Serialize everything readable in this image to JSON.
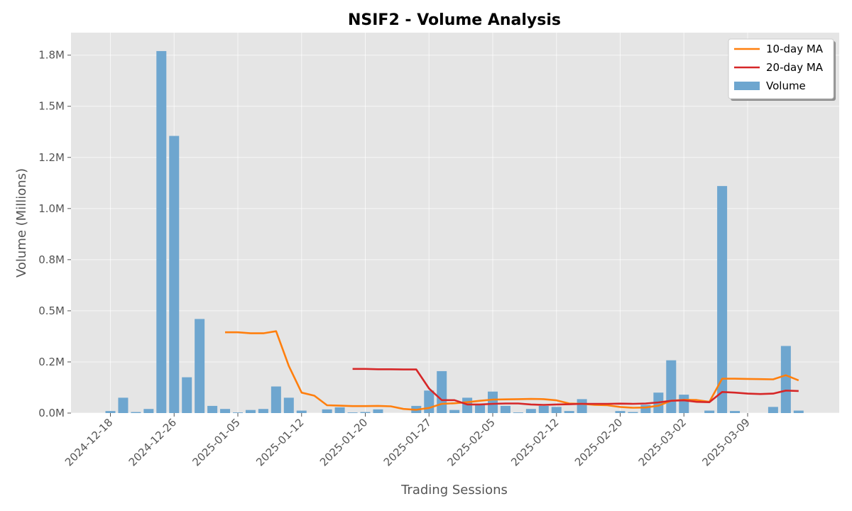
{
  "chart_data": {
    "type": "bar",
    "title": "NSIF2 - Volume Analysis",
    "xlabel": "Trading Sessions",
    "ylabel": "Volume (Millions)",
    "ylim": [
      0,
      1.86
    ],
    "ytick_values": [
      0.0,
      0.25,
      0.5,
      0.75,
      1.0,
      1.25,
      1.5,
      1.75
    ],
    "ytick_labels": [
      "0.0M",
      "0.2M",
      "0.5M",
      "0.8M",
      "1.0M",
      "1.2M",
      "1.5M",
      "1.8M"
    ],
    "xtick_indices": [
      0,
      5,
      10,
      15,
      20,
      25,
      30,
      35,
      40,
      45,
      50
    ],
    "xtick_labels": [
      "2024-12-18",
      "2024-12-26",
      "2025-01-05",
      "2025-01-12",
      "2025-01-20",
      "2025-01-27",
      "2025-02-05",
      "2025-02-12",
      "2025-02-20",
      "2025-03-02",
      "2025-03-09"
    ],
    "grid": true,
    "legend_position": "top-right",
    "series": [
      {
        "name": "Volume",
        "kind": "bar",
        "color": "#6ea6cf",
        "values": [
          0.01,
          0.075,
          0.005,
          0.02,
          1.77,
          1.355,
          0.175,
          0.46,
          0.035,
          0.02,
          0.003,
          0.015,
          0.02,
          0.13,
          0.075,
          0.012,
          0.0,
          0.018,
          0.028,
          0.003,
          0.005,
          0.018,
          0.0,
          0.0,
          0.035,
          0.11,
          0.205,
          0.015,
          0.075,
          0.045,
          0.105,
          0.035,
          0.003,
          0.02,
          0.035,
          0.03,
          0.01,
          0.068,
          0.0,
          0.0,
          0.01,
          0.005,
          0.04,
          0.1,
          0.258,
          0.09,
          0.0,
          0.012,
          1.11,
          0.01,
          0.0,
          0.0,
          0.03,
          0.328,
          0.012
        ]
      },
      {
        "name": "10-day MA",
        "kind": "line",
        "color": "#ff7f0e",
        "values": [
          null,
          null,
          null,
          null,
          null,
          null,
          null,
          null,
          null,
          0.395,
          0.395,
          0.39,
          0.39,
          0.4,
          0.23,
          0.1,
          0.085,
          0.038,
          0.036,
          0.034,
          0.034,
          0.035,
          0.033,
          0.02,
          0.016,
          0.025,
          0.045,
          0.048,
          0.053,
          0.06,
          0.066,
          0.067,
          0.068,
          0.069,
          0.068,
          0.062,
          0.047,
          0.045,
          0.04,
          0.038,
          0.03,
          0.026,
          0.027,
          0.036,
          0.06,
          0.065,
          0.064,
          0.055,
          0.168,
          0.168,
          0.167,
          0.166,
          0.165,
          0.185,
          0.16
        ]
      },
      {
        "name": "20-day MA",
        "kind": "line",
        "color": "#d62728",
        "values": [
          null,
          null,
          null,
          null,
          null,
          null,
          null,
          null,
          null,
          null,
          null,
          null,
          null,
          null,
          null,
          null,
          null,
          null,
          null,
          0.216,
          0.216,
          0.214,
          0.214,
          0.213,
          0.213,
          0.12,
          0.063,
          0.063,
          0.042,
          0.042,
          0.045,
          0.047,
          0.047,
          0.042,
          0.04,
          0.042,
          0.043,
          0.045,
          0.045,
          0.045,
          0.046,
          0.045,
          0.047,
          0.052,
          0.06,
          0.062,
          0.055,
          0.053,
          0.103,
          0.1,
          0.095,
          0.093,
          0.095,
          0.11,
          0.108
        ]
      }
    ]
  }
}
